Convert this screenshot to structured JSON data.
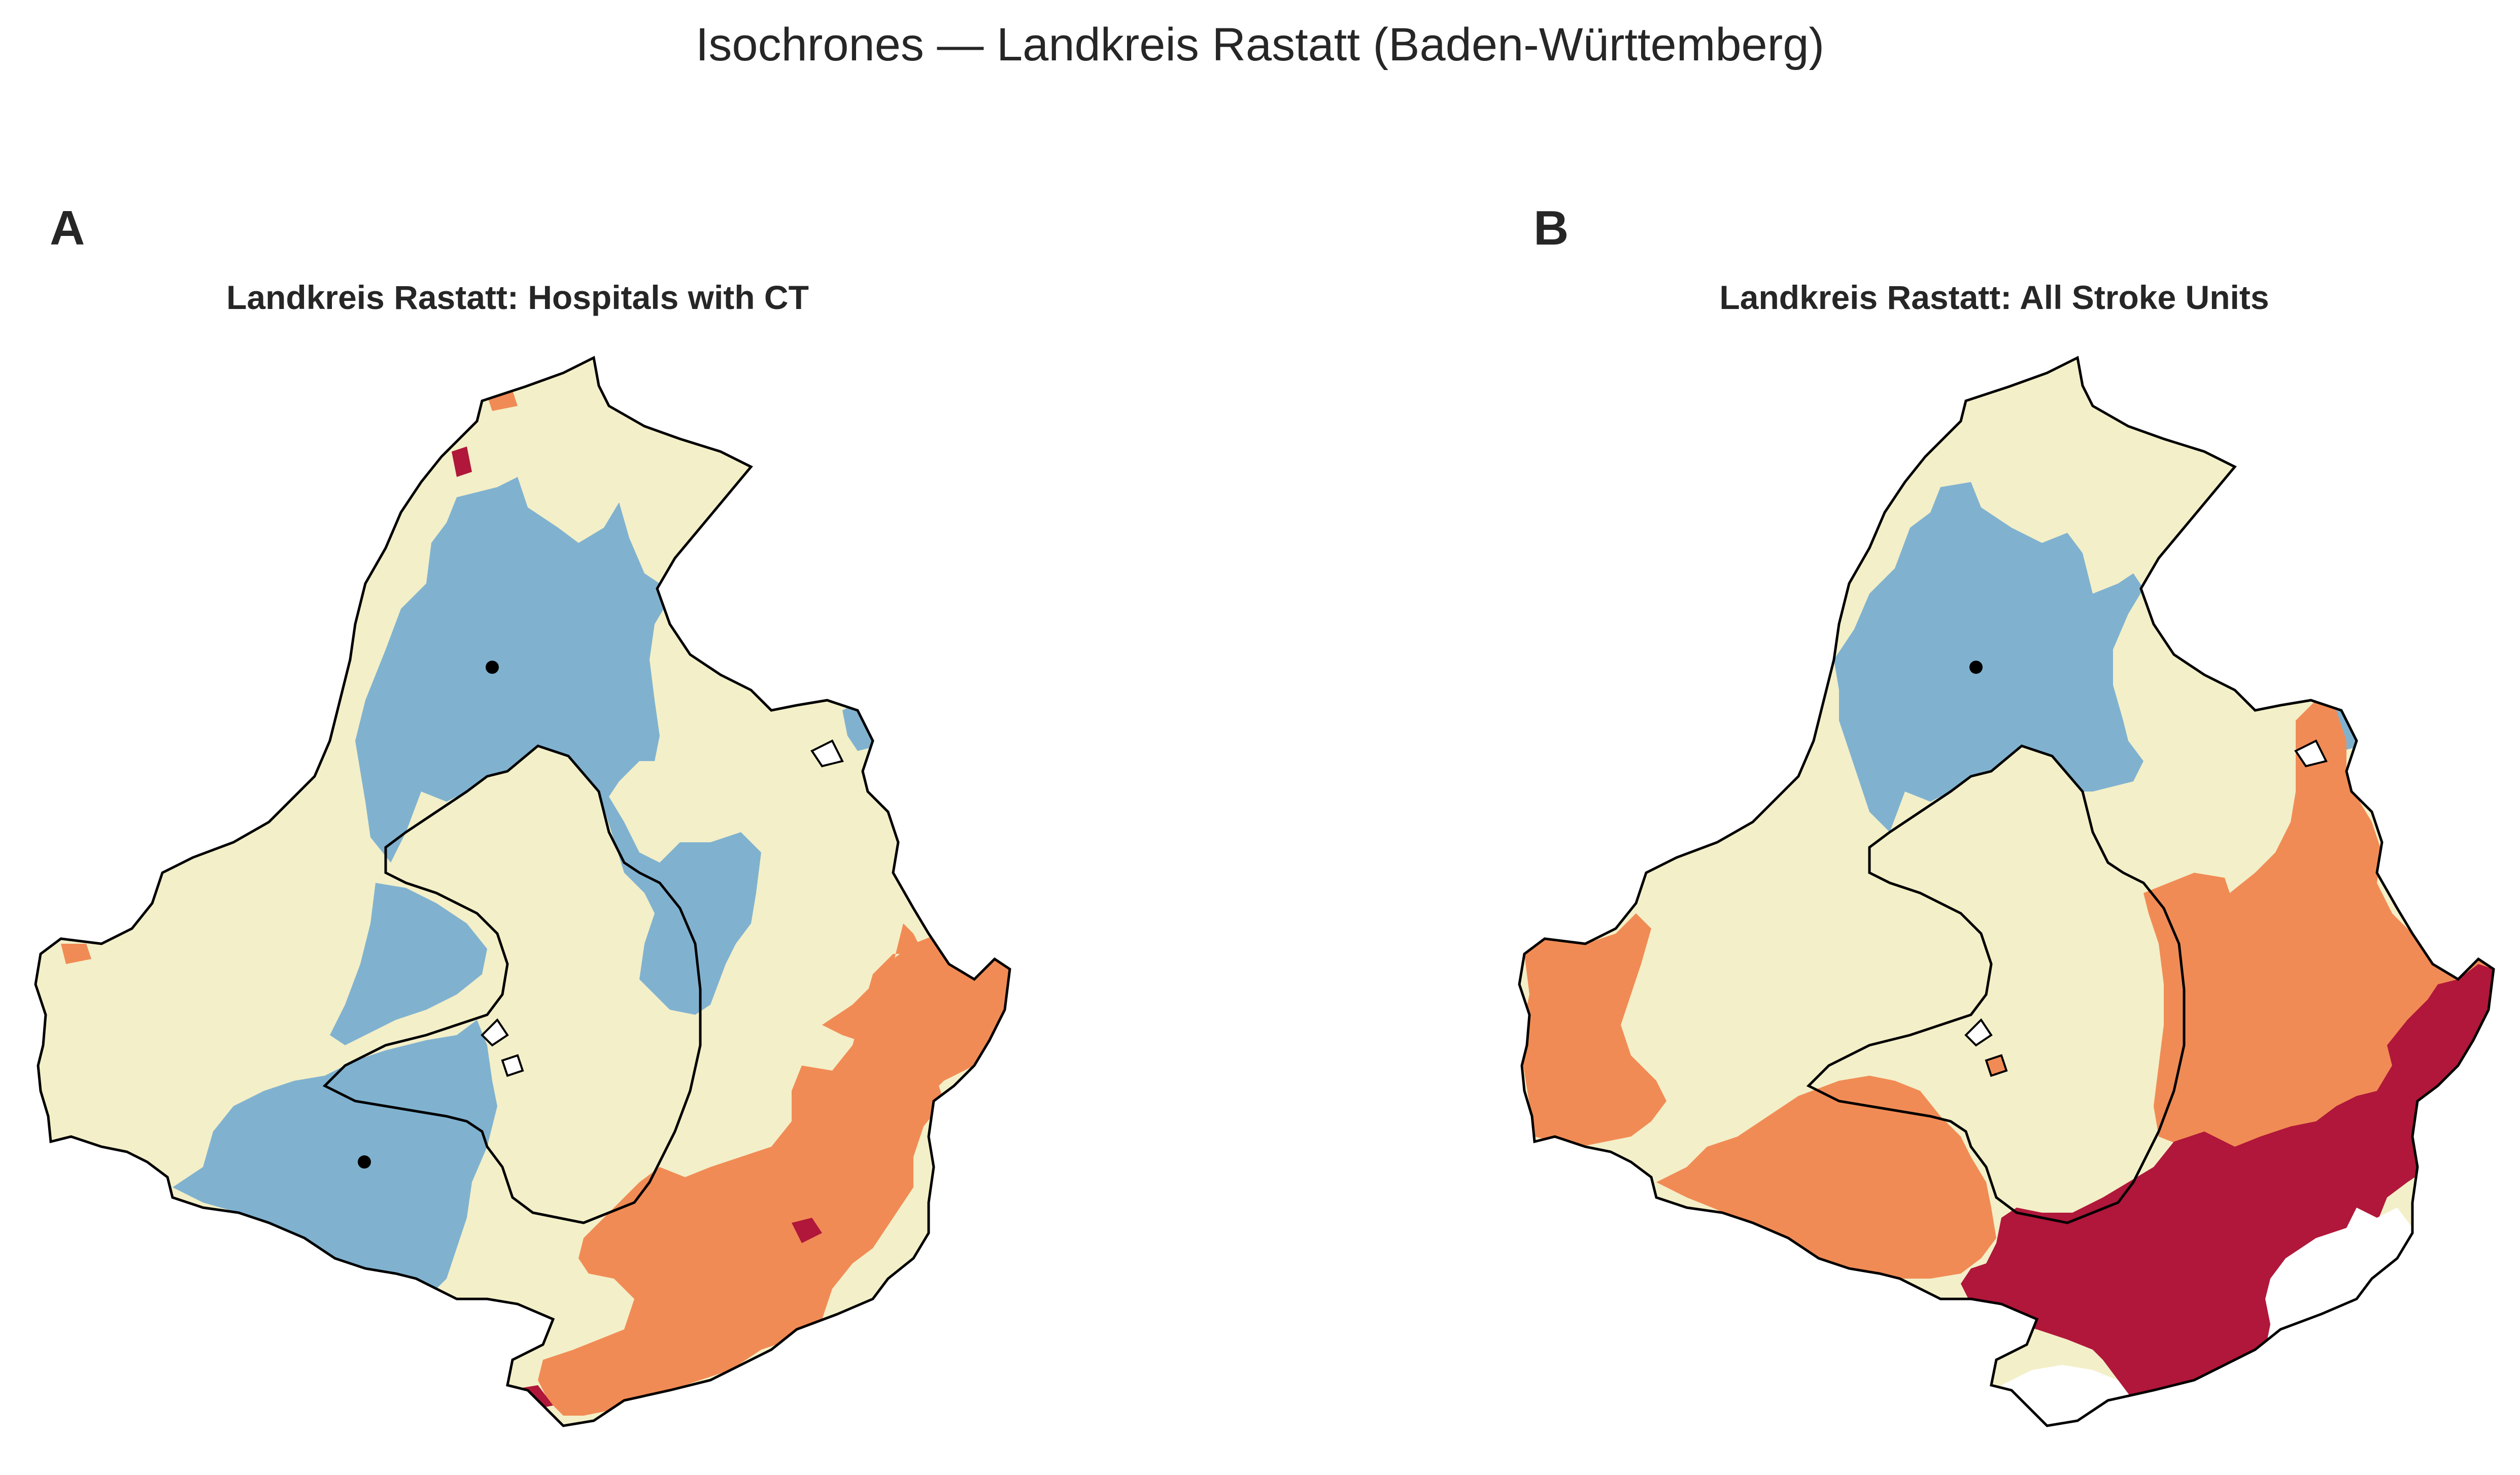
{
  "figure": {
    "title": "Isochrones — Landkreis Rastatt (Baden-Württemberg)"
  },
  "colors": {
    "band_1": "#80b2d0",
    "band_2": "#f3efc8",
    "band_3": "#f18b55",
    "band_4": "#b0173a",
    "boundary": "#000000",
    "facility": "#000000"
  },
  "panels": [
    {
      "letter": "A",
      "title": "Landkreis Rastatt: Hospitals with CT",
      "facility_markers": 2,
      "bands_present": [
        "band_1",
        "band_2",
        "band_3",
        "band_4"
      ]
    },
    {
      "letter": "B",
      "title": "Landkreis Rastatt: All Stroke Units",
      "facility_markers": 1,
      "bands_present": [
        "band_1",
        "band_2",
        "band_3",
        "band_4"
      ]
    }
  ]
}
